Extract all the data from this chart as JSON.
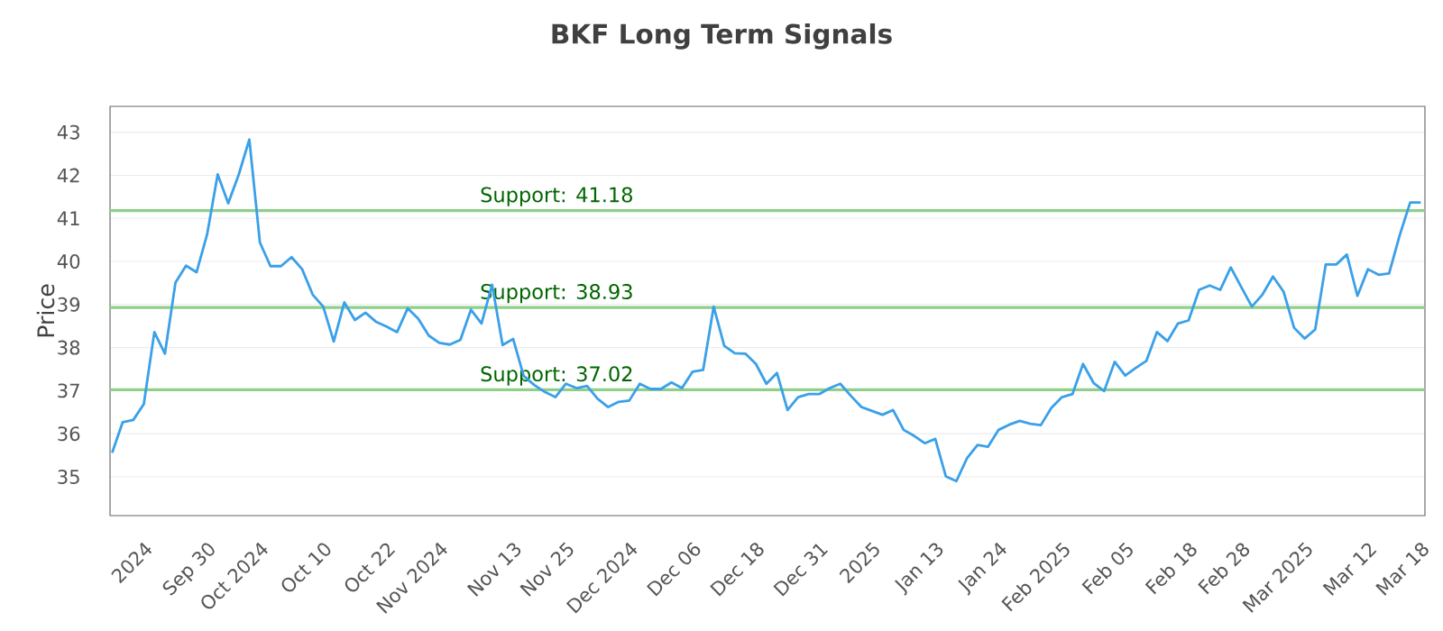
{
  "chart_data": {
    "type": "line",
    "title": "BKF Long Term Signals",
    "ylabel": "Price",
    "categories": [
      null,
      null,
      null,
      "2024",
      null,
      null,
      null,
      null,
      null,
      "Sep 30",
      null,
      null,
      null,
      null,
      "Oct 2024",
      null,
      null,
      null,
      null,
      null,
      "Oct 10",
      null,
      null,
      null,
      null,
      null,
      "Oct 22",
      null,
      null,
      null,
      null,
      "Nov 2024",
      null,
      null,
      null,
      null,
      null,
      null,
      "Nov 13",
      null,
      null,
      null,
      null,
      "Nov 25",
      null,
      null,
      null,
      null,
      null,
      "Dec 2024",
      null,
      null,
      null,
      null,
      null,
      "Dec 06",
      null,
      null,
      null,
      null,
      null,
      "Dec 18",
      null,
      null,
      null,
      null,
      null,
      "Dec 31",
      null,
      null,
      null,
      null,
      "2025",
      null,
      null,
      null,
      null,
      null,
      "Jan 13",
      null,
      null,
      null,
      null,
      null,
      "Jan 24",
      null,
      null,
      null,
      null,
      null,
      "Feb 2025",
      null,
      null,
      null,
      null,
      null,
      "Feb 05",
      null,
      null,
      null,
      null,
      null,
      "Feb 18",
      null,
      null,
      null,
      null,
      "Feb 28",
      null,
      null,
      null,
      null,
      null,
      "Mar 2025",
      null,
      null,
      null,
      null,
      null,
      "Mar 12",
      null,
      null,
      null,
      null,
      "Mar 18"
    ],
    "series": [
      {
        "color": "#3aa0e8",
        "values": [
          35.56,
          36.27,
          36.32,
          36.69,
          38.36,
          37.86,
          39.51,
          39.9,
          39.75,
          40.63,
          42.02,
          41.35,
          42.02,
          42.83,
          40.44,
          39.89,
          39.89,
          40.1,
          39.82,
          39.23,
          38.95,
          38.14,
          39.05,
          38.64,
          38.81,
          38.6,
          38.49,
          38.36,
          38.91,
          38.67,
          38.28,
          38.11,
          38.07,
          38.18,
          38.88,
          38.56,
          39.46,
          38.06,
          38.2,
          37.34,
          37.13,
          36.97,
          36.85,
          37.16,
          37.06,
          37.11,
          36.81,
          36.62,
          36.74,
          36.77,
          37.16,
          37.04,
          37.04,
          37.19,
          37.06,
          37.44,
          37.48,
          38.95,
          38.04,
          37.87,
          37.86,
          37.62,
          37.16,
          37.41,
          36.55,
          36.85,
          36.92,
          36.92,
          37.06,
          37.16,
          36.88,
          36.62,
          36.53,
          36.44,
          36.55,
          36.09,
          35.95,
          35.78,
          35.88,
          35.01,
          34.9,
          35.43,
          35.74,
          35.7,
          36.09,
          36.21,
          36.3,
          36.23,
          36.2,
          36.6,
          36.85,
          36.92,
          37.62,
          37.18,
          36.99,
          37.67,
          37.35,
          37.53,
          37.69,
          38.36,
          38.15,
          38.56,
          38.63,
          39.34,
          39.44,
          39.34,
          39.86,
          39.4,
          38.95,
          39.23,
          39.65,
          39.3,
          38.46,
          38.21,
          38.42,
          39.93,
          39.93,
          40.16,
          39.2,
          39.82,
          39.69,
          39.72,
          40.6,
          41.37,
          41.37
        ]
      }
    ],
    "ylim": [
      34.1,
      43.6
    ],
    "yticks": [
      35,
      36,
      37,
      38,
      39,
      40,
      41,
      42,
      43
    ],
    "ref_lines": [
      {
        "axis": "y",
        "value": 41.18,
        "label": "Support: 41.18",
        "color": "#8fcf8a"
      },
      {
        "axis": "y",
        "value": 38.93,
        "label": "Support: 38.93",
        "color": "#8fcf8a"
      },
      {
        "axis": "y",
        "value": 37.02,
        "label": "Support: 37.02",
        "color": "#8fcf8a"
      }
    ],
    "grid": "y",
    "marker": "none",
    "line_style": "solid"
  }
}
